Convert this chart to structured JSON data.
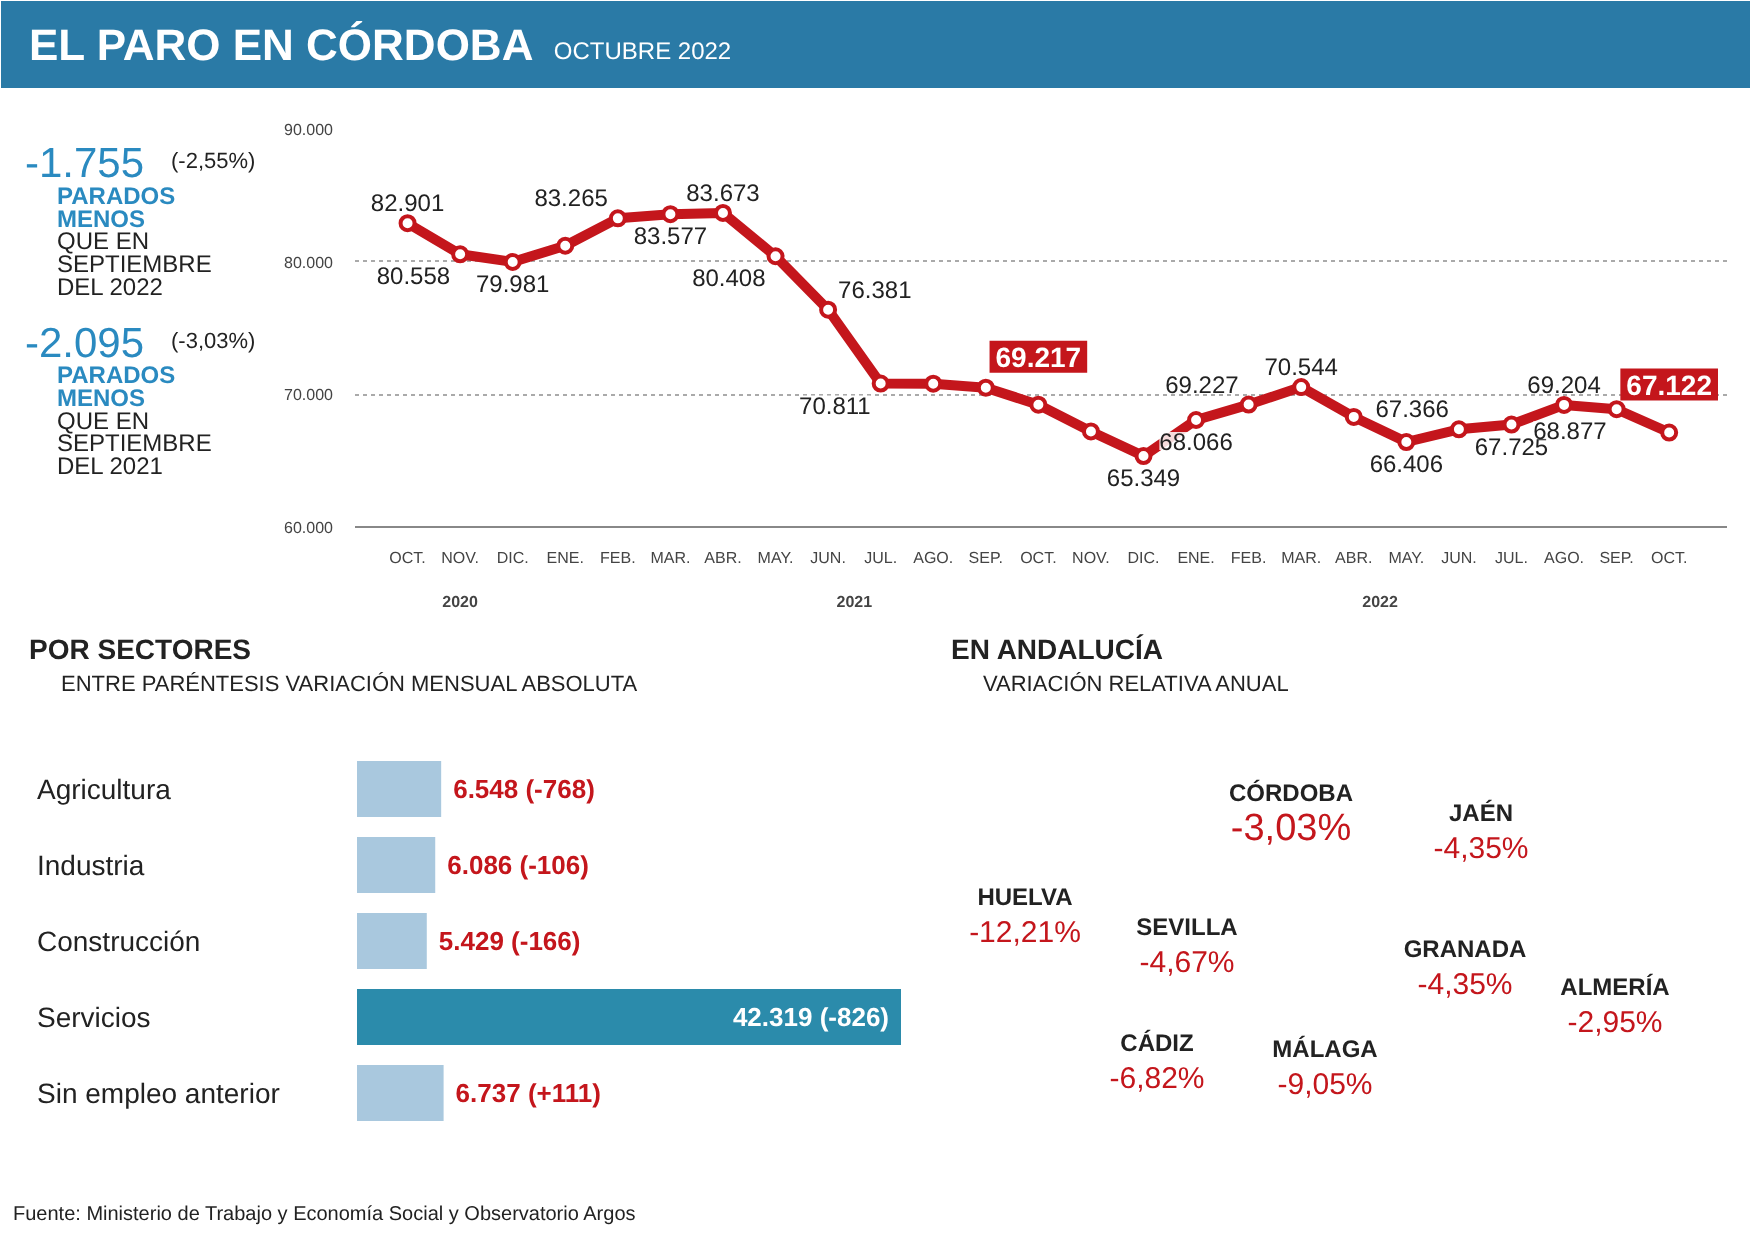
{
  "chart_data": [
    {
      "type": "other",
      "annotations": [
        "-1.755",
        "(-2,55%)",
        "PARADOS MENOS",
        "QUE EN SEPTIEMBRE DEL 2022",
        "-2.095",
        "(-3,03%)",
        "PARADOS MENOS",
        "QUE EN SEPTIEMBRE DEL 2021"
      ]
    },
    {
      "type": "line",
      "title": "EL PARO EN CÓRDOBA",
      "subtitle": "OCTUBRE 2022",
      "categories": [
        "OCT.",
        "NOV.",
        "DIC.",
        "ENE.",
        "FEB.",
        "MAR.",
        "ABR.",
        "MAY.",
        "JUN.",
        "JUL.",
        "AGO.",
        "SEP.",
        "OCT.",
        "NOV.",
        "DIC.",
        "ENE.",
        "FEB.",
        "MAR.",
        "ABR.",
        "MAY.",
        "JUN.",
        "JUL.",
        "AGO.",
        "SEP.",
        "OCT."
      ],
      "series": [
        {
          "color": "#c4161c",
          "values": [
            82901,
            80558,
            79981,
            81200,
            83265,
            83577,
            83673,
            80408,
            76381,
            70811,
            70800,
            70500,
            69217,
            67200,
            65349,
            68066,
            69227,
            70544,
            68300,
            66406,
            67366,
            67725,
            69204,
            68877,
            67122
          ],
          "value_labels": [
            "82.901",
            "80.558",
            "79.981",
            null,
            "83.265",
            "83.577",
            "83.673",
            "80.408",
            "76.381",
            "70.811",
            null,
            null,
            null,
            null,
            "65.349",
            "68.066",
            "69.227",
            "70.544",
            null,
            "66.406",
            "67.366",
            "67.725",
            "69.204",
            "68.877",
            null
          ]
        }
      ],
      "ylim": [
        60000,
        90000
      ],
      "yticks": [
        {
          "value": 60000,
          "label": "60.000"
        },
        {
          "value": 70000,
          "label": "70.000"
        },
        {
          "value": 80000,
          "label": "80.000"
        },
        {
          "value": 90000,
          "label": "90.000"
        }
      ],
      "grid": "y",
      "marker": "circle",
      "line_style": "solid",
      "annotations": [
        "2020",
        "2021",
        "2022",
        {
          "text": "69.217",
          "y": 69217
        },
        {
          "text": "67.122",
          "y": 67122
        },
        "Fuente: Ministerio de Trabajo y Economía Social y Observatorio Argos"
      ]
    },
    {
      "type": "bar",
      "orientation": "horizontal",
      "title": "POR SECTORES",
      "subtitle": "ENTRE PARÉNTESIS VARIACIÓN MENSUAL ABSOLUTA",
      "categories": [
        "Agricultura",
        "Industria",
        "Construcción",
        "Servicios",
        "Sin empleo anterior"
      ],
      "values": [
        6548,
        6086,
        5429,
        42319,
        6737
      ],
      "colors": [
        "#a9c8de",
        "#a9c8de",
        "#a9c8de",
        "#2b8bab",
        "#a9c8de"
      ],
      "value_labels": [
        "6.548 (-768)",
        "6.086 (-106)",
        "5.429 (-166)",
        "42.319 (-826)",
        "6.737 (+111)"
      ]
    },
    {
      "type": "other",
      "title": "EN ANDALUCÍA",
      "subtitle": "VARIACIÓN RELATIVA ANUAL",
      "categories": [
        "CÓRDOBA",
        "JAÉN",
        "HUELVA",
        "SEVILLA",
        "GRANADA",
        "ALMERÍA",
        "CÁDIZ",
        "MÁLAGA"
      ],
      "values": [
        -3.03,
        -4.35,
        -12.21,
        -4.67,
        -4.35,
        -2.95,
        -6.82,
        -9.05
      ],
      "value_labels": [
        "-3,03%",
        "-4,35%",
        "-12,21%",
        "-4,67%",
        "-4,35%",
        "-2,95%",
        "-6,82%",
        "-9,05%"
      ]
    }
  ]
}
